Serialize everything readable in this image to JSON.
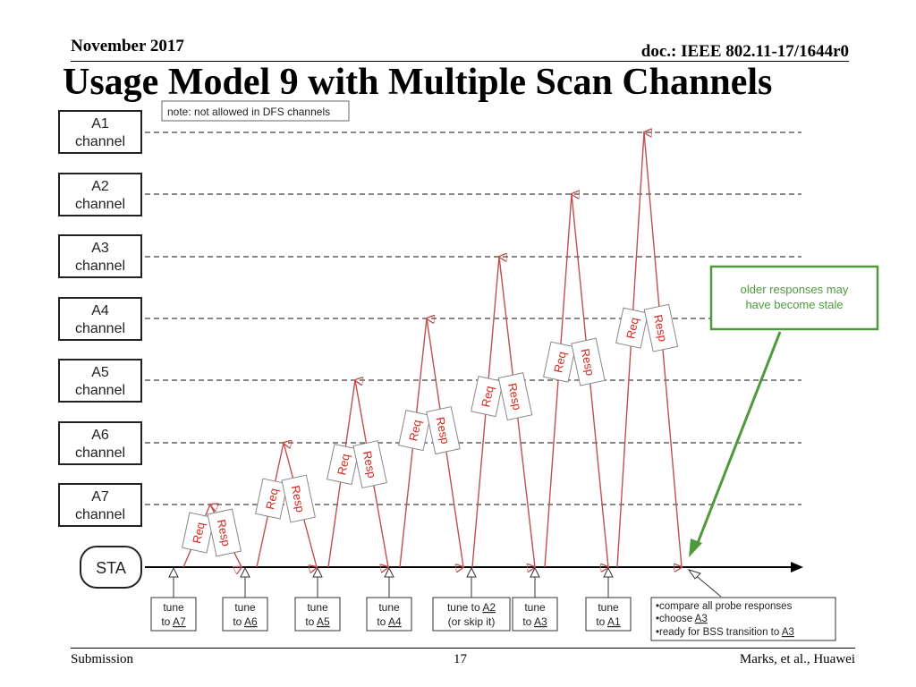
{
  "header": {
    "date": "November 2017",
    "doc": "doc.: IEEE 802.11-17/1644r0"
  },
  "title": "Usage Model 9 with Multiple Scan Channels",
  "diagram": {
    "note": "note: not allowed in DFS channels",
    "channels": [
      {
        "name": "A1",
        "sub": "channel"
      },
      {
        "name": "A2",
        "sub": "channel"
      },
      {
        "name": "A3",
        "sub": "channel"
      },
      {
        "name": "A4",
        "sub": "channel"
      },
      {
        "name": "A5",
        "sub": "channel"
      },
      {
        "name": "A6",
        "sub": "channel"
      },
      {
        "name": "A7",
        "sub": "channel"
      }
    ],
    "sta_label": "STA",
    "req_label": "Req",
    "resp_label": "Resp",
    "tunes": [
      {
        "line1": "tune",
        "line2_prefix": "to ",
        "target": "A7",
        "line2_suffix": ""
      },
      {
        "line1": "tune",
        "line2_prefix": "to ",
        "target": "A6",
        "line2_suffix": ""
      },
      {
        "line1": "tune",
        "line2_prefix": "to ",
        "target": "A5",
        "line2_suffix": ""
      },
      {
        "line1": "tune",
        "line2_prefix": "to ",
        "target": "A4",
        "line2_suffix": ""
      },
      {
        "line1": "tune to ",
        "target1": "A2",
        "line2": "(or skip it)"
      },
      {
        "line1": "tune",
        "line2_prefix": "to ",
        "target": "A3",
        "line2_suffix": ""
      },
      {
        "line1": "tune",
        "line2_prefix": "to ",
        "target": "A1",
        "line2_suffix": ""
      }
    ],
    "final_box": {
      "l1": "•compare all probe responses",
      "l2_prefix": "•choose ",
      "l2_target": "A3",
      "l3_prefix": "•ready for BSS transition to ",
      "l3_target": "A3"
    },
    "callout": "older responses may have become stale",
    "colors": {
      "arrow": "#c0504d",
      "label_text": "#d9261c",
      "callout": "#4e9a3a",
      "dashed": "#444444"
    }
  },
  "footer": {
    "left": "Submission",
    "page": "17",
    "right": "Marks, et al., Huawei"
  }
}
